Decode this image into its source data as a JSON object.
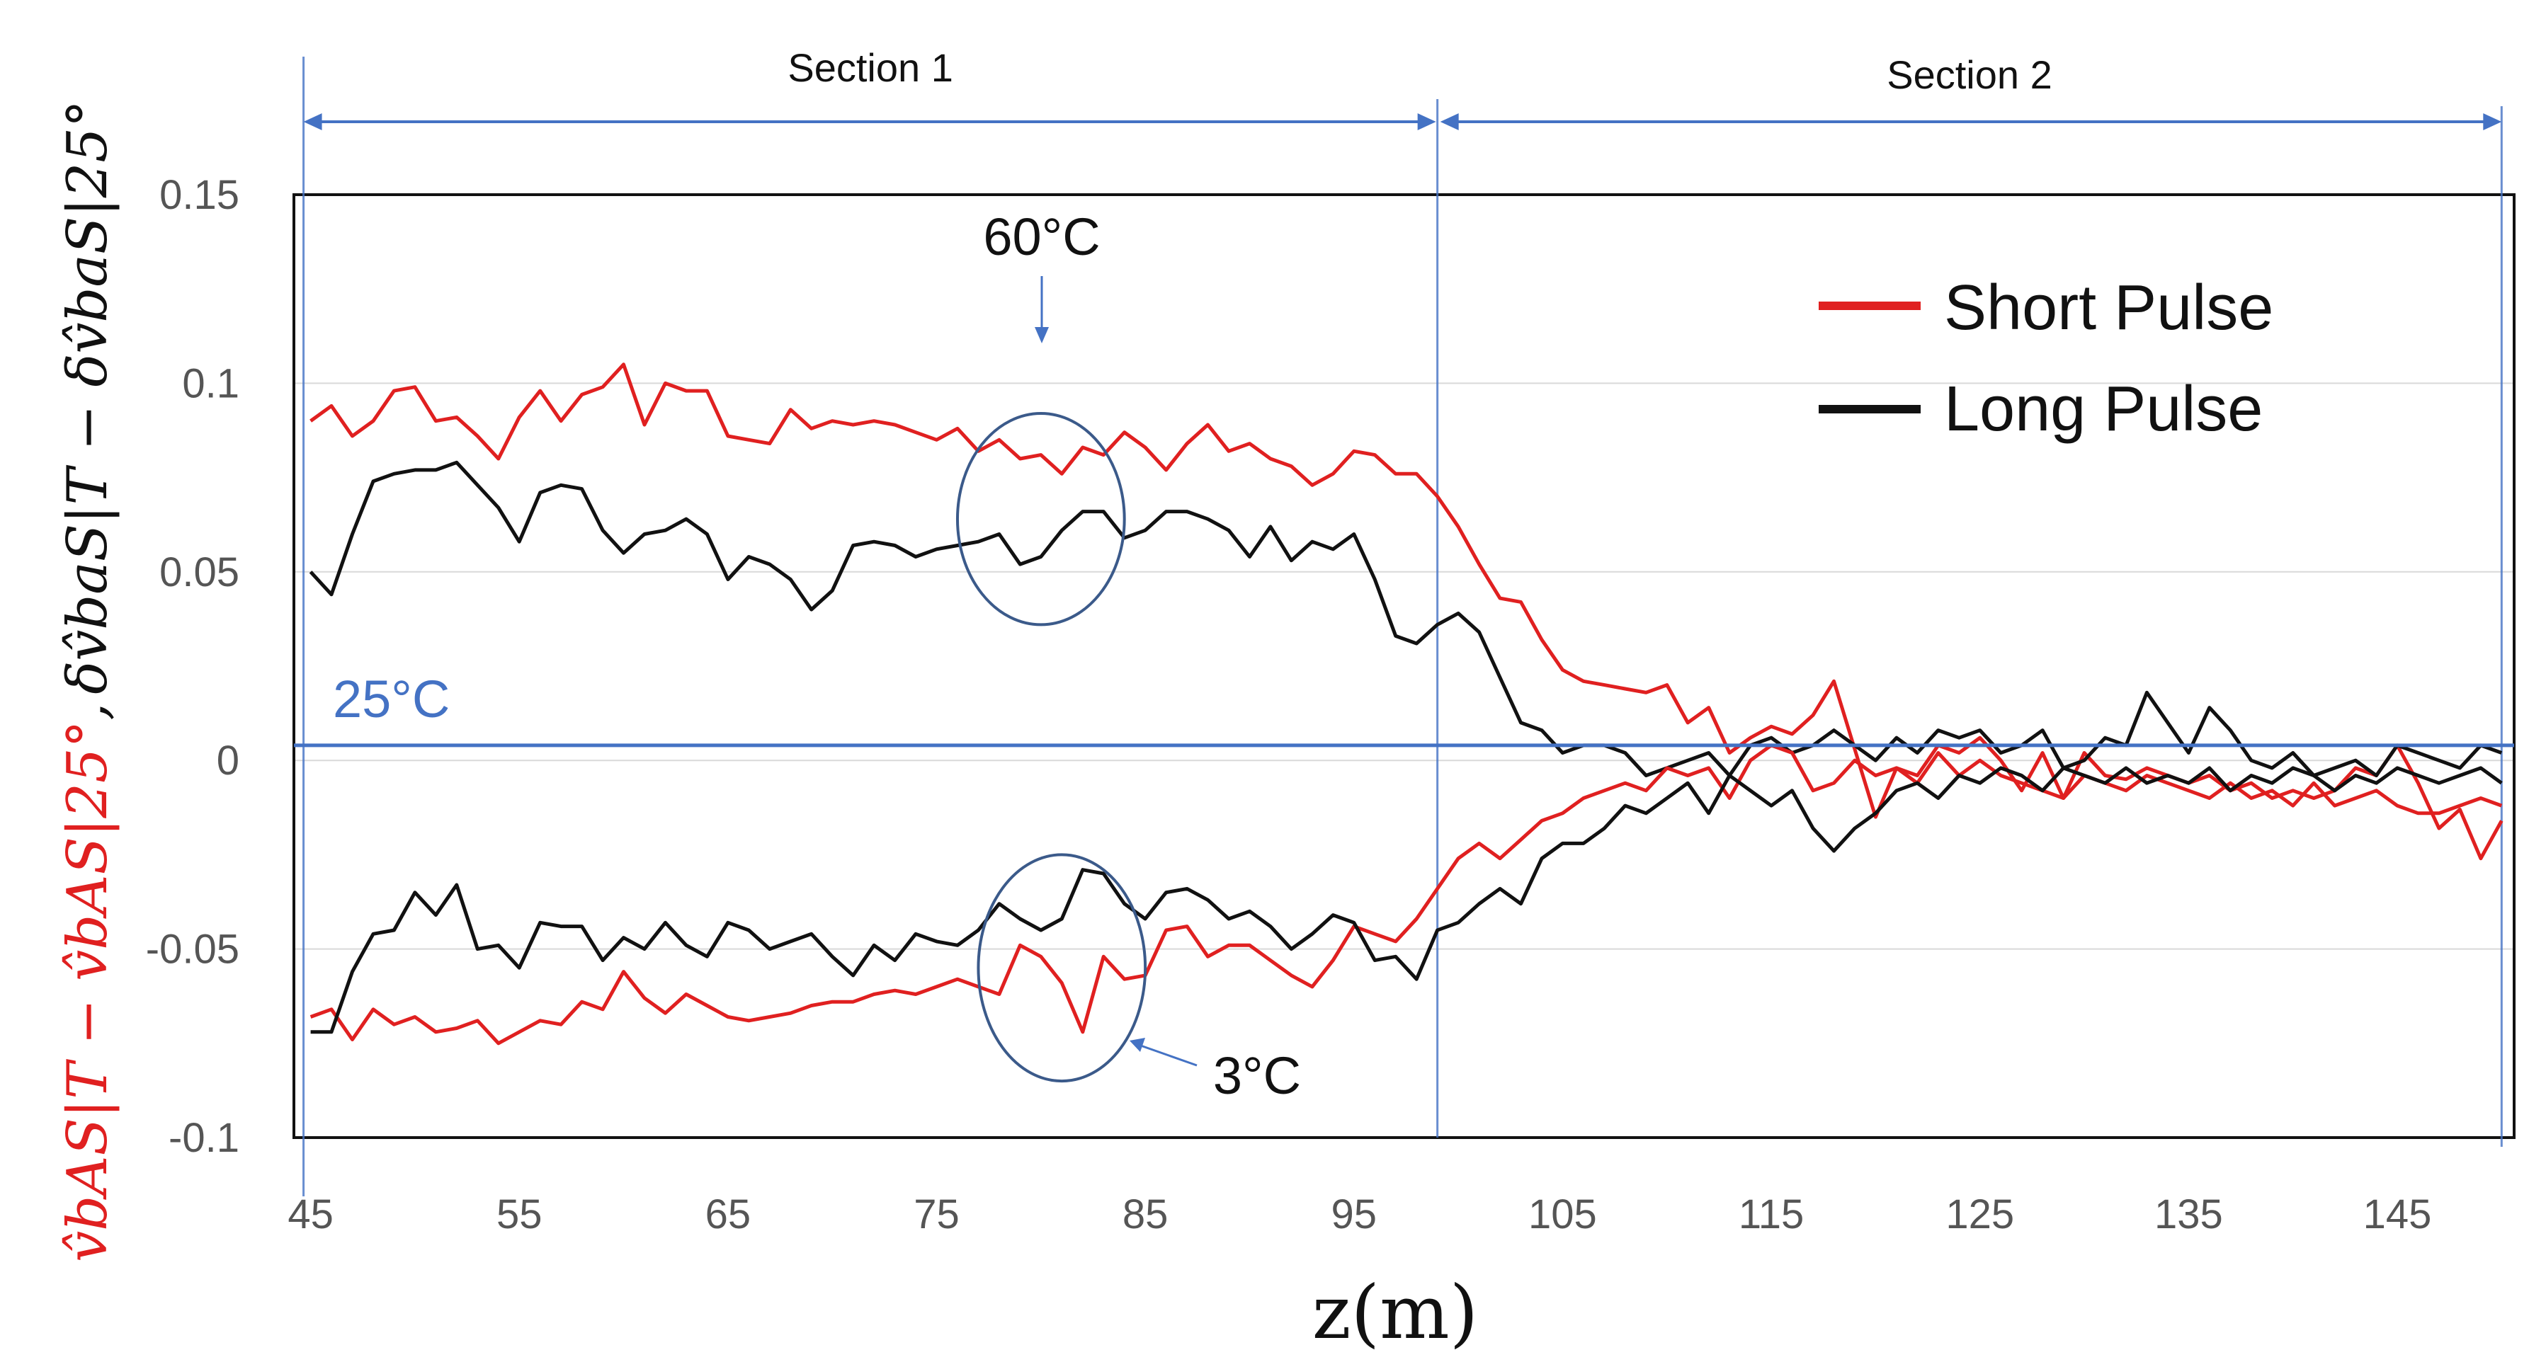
{
  "chart_data": {
    "type": "line",
    "title": "",
    "xlabel": "z(m)",
    "ylabel": {
      "red_part": "v̂bAS|T − v̂bAS|25°",
      "separator": ",",
      "black_part": "δv̂baS|T − δv̂baS|25°"
    },
    "xlim": [
      45,
      150
    ],
    "ylim": [
      -0.1,
      0.15
    ],
    "x_ticks": [
      "45",
      "55",
      "65",
      "75",
      "85",
      "95",
      "105",
      "115",
      "125",
      "135",
      "145"
    ],
    "y_ticks": [
      "0.15",
      "0.1",
      "0.05",
      "0",
      "-0.05",
      "-0.1"
    ],
    "legend": {
      "position": "top-right",
      "entries": [
        "Short Pulse",
        "Long Pulse"
      ]
    },
    "colors": {
      "short": "#E02020",
      "long": "#111111",
      "reference": "#4472C4",
      "grid": "#d9d9d9"
    },
    "sections": [
      {
        "label": "Section 1",
        "from": 45,
        "to": 99
      },
      {
        "label": "Section 2",
        "from": 99,
        "to": 150
      }
    ],
    "reference_line": {
      "label": "25°C",
      "y": 0.004
    },
    "annotations": [
      {
        "label": "60°C",
        "center": [
          80,
          0.064
        ],
        "radii": [
          4,
          0.028
        ]
      },
      {
        "label": "3°C",
        "center": [
          81,
          -0.055
        ],
        "radii": [
          4,
          0.03
        ]
      }
    ],
    "x": [
      45,
      46,
      47,
      48,
      49,
      50,
      51,
      52,
      53,
      54,
      55,
      56,
      57,
      58,
      59,
      60,
      61,
      62,
      63,
      64,
      65,
      66,
      67,
      68,
      69,
      70,
      71,
      72,
      73,
      74,
      75,
      76,
      77,
      78,
      79,
      80,
      81,
      82,
      83,
      84,
      85,
      86,
      87,
      88,
      89,
      90,
      91,
      92,
      93,
      94,
      95,
      96,
      97,
      98,
      99,
      100,
      101,
      102,
      103,
      104,
      105,
      106,
      107,
      108,
      109,
      110,
      111,
      112,
      113,
      114,
      115,
      116,
      117,
      118,
      119,
      120,
      121,
      122,
      123,
      124,
      125,
      126,
      127,
      128,
      129,
      130,
      131,
      132,
      133,
      134,
      135,
      136,
      137,
      138,
      139,
      140,
      141,
      142,
      143,
      144,
      145,
      146,
      147,
      148,
      149,
      150
    ],
    "series": [
      {
        "name": "Short Pulse (upper)",
        "color": "#E02020",
        "values": [
          0.09,
          0.094,
          0.086,
          0.09,
          0.098,
          0.099,
          0.09,
          0.091,
          0.086,
          0.08,
          0.091,
          0.098,
          0.09,
          0.097,
          0.099,
          0.105,
          0.089,
          0.1,
          0.098,
          0.098,
          0.086,
          0.085,
          0.084,
          0.093,
          0.088,
          0.09,
          0.089,
          0.09,
          0.089,
          0.087,
          0.085,
          0.088,
          0.082,
          0.085,
          0.08,
          0.081,
          0.076,
          0.083,
          0.081,
          0.087,
          0.083,
          0.077,
          0.084,
          0.089,
          0.082,
          0.084,
          0.08,
          0.078,
          0.073,
          0.076,
          0.082,
          0.081,
          0.076,
          0.076,
          0.07,
          0.062,
          0.052,
          0.043,
          0.042,
          0.032,
          0.024,
          0.021,
          0.02,
          0.019,
          0.018,
          0.02,
          0.01,
          0.014,
          0.002,
          0.006,
          0.009,
          0.007,
          0.012,
          0.021,
          0.003,
          -0.015,
          -0.002,
          -0.004,
          0.004,
          0.002,
          0.006,
          0.0,
          -0.008,
          0.002,
          -0.01,
          0.002,
          -0.004,
          -0.005,
          -0.002,
          -0.004,
          -0.006,
          -0.004,
          -0.008,
          -0.006,
          -0.01,
          -0.008,
          -0.01,
          -0.008,
          -0.002,
          -0.004,
          0.004,
          -0.006,
          -0.018,
          -0.013,
          -0.026,
          -0.016
        ]
      },
      {
        "name": "Long Pulse (upper)",
        "color": "#111111",
        "values": [
          0.05,
          0.044,
          0.06,
          0.074,
          0.076,
          0.077,
          0.077,
          0.079,
          0.073,
          0.067,
          0.058,
          0.071,
          0.073,
          0.072,
          0.061,
          0.055,
          0.06,
          0.061,
          0.064,
          0.06,
          0.048,
          0.054,
          0.052,
          0.048,
          0.04,
          0.045,
          0.057,
          0.058,
          0.057,
          0.054,
          0.056,
          0.057,
          0.058,
          0.06,
          0.052,
          0.054,
          0.061,
          0.066,
          0.066,
          0.059,
          0.061,
          0.066,
          0.066,
          0.064,
          0.061,
          0.054,
          0.062,
          0.053,
          0.058,
          0.056,
          0.06,
          0.048,
          0.033,
          0.031,
          0.036,
          0.039,
          0.034,
          0.022,
          0.01,
          0.008,
          0.002,
          0.004,
          0.004,
          0.002,
          -0.004,
          -0.002,
          0.0,
          0.002,
          -0.004,
          0.004,
          0.006,
          0.002,
          0.004,
          0.008,
          0.004,
          0.0,
          0.006,
          0.002,
          0.008,
          0.006,
          0.008,
          0.002,
          0.004,
          0.008,
          -0.002,
          0.0,
          0.006,
          0.004,
          0.018,
          0.01,
          0.002,
          0.014,
          0.008,
          0.0,
          -0.002,
          0.002,
          -0.004,
          -0.002,
          0.0,
          -0.004,
          0.004,
          0.002,
          0.0,
          -0.002,
          0.004,
          0.002
        ]
      },
      {
        "name": "Short Pulse (lower)",
        "color": "#E02020",
        "values": [
          -0.068,
          -0.066,
          -0.074,
          -0.066,
          -0.07,
          -0.068,
          -0.072,
          -0.071,
          -0.069,
          -0.075,
          -0.072,
          -0.069,
          -0.07,
          -0.064,
          -0.066,
          -0.056,
          -0.063,
          -0.067,
          -0.062,
          -0.065,
          -0.068,
          -0.069,
          -0.068,
          -0.067,
          -0.065,
          -0.064,
          -0.064,
          -0.062,
          -0.061,
          -0.062,
          -0.06,
          -0.058,
          -0.06,
          -0.062,
          -0.049,
          -0.052,
          -0.059,
          -0.072,
          -0.052,
          -0.058,
          -0.057,
          -0.045,
          -0.044,
          -0.052,
          -0.049,
          -0.049,
          -0.053,
          -0.057,
          -0.06,
          -0.053,
          -0.044,
          -0.046,
          -0.048,
          -0.042,
          -0.034,
          -0.026,
          -0.022,
          -0.026,
          -0.021,
          -0.016,
          -0.014,
          -0.01,
          -0.008,
          -0.006,
          -0.008,
          -0.002,
          -0.004,
          -0.002,
          -0.01,
          0.0,
          0.004,
          0.002,
          -0.008,
          -0.006,
          0.0,
          -0.004,
          -0.002,
          -0.006,
          0.002,
          -0.004,
          0.0,
          -0.004,
          -0.006,
          -0.008,
          -0.01,
          -0.004,
          -0.006,
          -0.008,
          -0.004,
          -0.006,
          -0.008,
          -0.01,
          -0.006,
          -0.01,
          -0.008,
          -0.012,
          -0.006,
          -0.012,
          -0.01,
          -0.008,
          -0.012,
          -0.014,
          -0.014,
          -0.012,
          -0.01,
          -0.012
        ]
      },
      {
        "name": "Long Pulse (lower)",
        "color": "#111111",
        "values": [
          -0.072,
          -0.072,
          -0.056,
          -0.046,
          -0.045,
          -0.035,
          -0.041,
          -0.033,
          -0.05,
          -0.049,
          -0.055,
          -0.043,
          -0.044,
          -0.044,
          -0.053,
          -0.047,
          -0.05,
          -0.043,
          -0.049,
          -0.052,
          -0.043,
          -0.045,
          -0.05,
          -0.048,
          -0.046,
          -0.052,
          -0.057,
          -0.049,
          -0.053,
          -0.046,
          -0.048,
          -0.049,
          -0.045,
          -0.038,
          -0.042,
          -0.045,
          -0.042,
          -0.029,
          -0.03,
          -0.038,
          -0.042,
          -0.035,
          -0.034,
          -0.037,
          -0.042,
          -0.04,
          -0.044,
          -0.05,
          -0.046,
          -0.041,
          -0.043,
          -0.053,
          -0.052,
          -0.058,
          -0.045,
          -0.043,
          -0.038,
          -0.034,
          -0.038,
          -0.026,
          -0.022,
          -0.022,
          -0.018,
          -0.012,
          -0.014,
          -0.01,
          -0.006,
          -0.014,
          -0.004,
          -0.008,
          -0.012,
          -0.008,
          -0.018,
          -0.024,
          -0.018,
          -0.014,
          -0.008,
          -0.006,
          -0.01,
          -0.004,
          -0.006,
          -0.002,
          -0.004,
          -0.008,
          -0.002,
          -0.004,
          -0.006,
          -0.002,
          -0.006,
          -0.004,
          -0.006,
          -0.002,
          -0.008,
          -0.004,
          -0.006,
          -0.002,
          -0.004,
          -0.008,
          -0.004,
          -0.006,
          -0.002,
          -0.004,
          -0.006,
          -0.004,
          -0.002,
          -0.006
        ]
      }
    ]
  }
}
